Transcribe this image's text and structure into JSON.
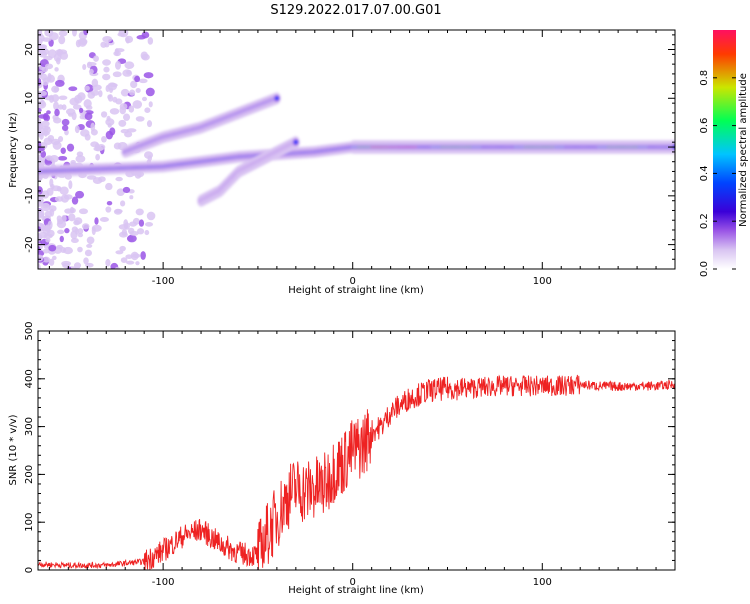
{
  "title": "S129.2022.017.07.00.G01",
  "colors": {
    "snr_line": "#ee2222",
    "colormap": [
      "#ffffff",
      "#d9c4f2",
      "#9a55e6",
      "#3a00d8",
      "#0044ff",
      "#00c4ff",
      "#00ff55",
      "#cbe600",
      "#ff3a00",
      "#ff1060"
    ]
  },
  "chart_data": [
    {
      "type": "heatmap",
      "title": "S129.2022.017.07.00.G01",
      "xlabel": "Height of straight line (km)",
      "ylabel": "Frequency (Hz)",
      "xlim": [
        -166,
        170
      ],
      "ylim": [
        -25,
        24
      ],
      "xticks": [
        -100,
        0,
        100
      ],
      "xtick_labels": [
        "-100",
        "0",
        "100"
      ],
      "yticks": [
        -20,
        -10,
        0,
        10,
        20
      ],
      "ytick_labels": [
        "-20",
        "-10",
        "0",
        "10",
        "20"
      ],
      "colorbar": {
        "label": "Normalized spectral amplitude",
        "range": [
          0,
          1
        ],
        "ticks": [
          0.0,
          0.2,
          0.4,
          0.6,
          0.8
        ],
        "tick_labels": [
          "0.0",
          "0.2",
          "0.4",
          "0.6",
          "0.8"
        ]
      },
      "features": [
        {
          "name": "main carrier",
          "x": [
            -166,
            -100,
            -60,
            -20,
            0,
            50,
            100,
            150,
            170
          ],
          "freq": [
            -5,
            -4,
            -2,
            -1,
            0,
            0,
            0,
            0,
            0
          ]
        },
        {
          "name": "upper branch",
          "x": [
            -120,
            -100,
            -80,
            -60,
            -40
          ],
          "freq": [
            -1,
            2,
            4,
            7,
            10
          ]
        },
        {
          "name": "lower branch",
          "x": [
            -80,
            -70,
            -60,
            -45,
            -30
          ],
          "freq": [
            -11,
            -9,
            -5,
            -2,
            1
          ]
        }
      ]
    },
    {
      "type": "line",
      "xlabel": "Height of straight line (km)",
      "ylabel": "SNR (10 * v/v)",
      "xlim": [
        -166,
        170
      ],
      "ylim": [
        0,
        500
      ],
      "xticks": [
        -100,
        0,
        100
      ],
      "xtick_labels": [
        "-100",
        "0",
        "100"
      ],
      "yticks": [
        0,
        100,
        200,
        300,
        400,
        500
      ],
      "ytick_labels": [
        "0",
        "100",
        "200",
        "300",
        "400",
        "500"
      ],
      "series": [
        {
          "x": [
            -166,
            -150,
            -130,
            -110,
            -100,
            -90,
            -80,
            -70,
            -60,
            -50,
            -45,
            -40,
            -35,
            -30,
            -25,
            -20,
            -15,
            -10,
            -5,
            0,
            5,
            10,
            15,
            20,
            30,
            40,
            50,
            60,
            70,
            80,
            90,
            95,
            100,
            110,
            120,
            130,
            140,
            150,
            160,
            170
          ],
          "y": [
            12,
            10,
            10,
            18,
            40,
            70,
            85,
            55,
            35,
            30,
            75,
            110,
            150,
            170,
            165,
            170,
            175,
            210,
            225,
            250,
            260,
            290,
            300,
            330,
            360,
            375,
            380,
            380,
            383,
            385,
            385,
            385,
            385,
            385,
            388,
            385,
            384,
            385,
            385,
            388
          ]
        }
      ]
    }
  ]
}
